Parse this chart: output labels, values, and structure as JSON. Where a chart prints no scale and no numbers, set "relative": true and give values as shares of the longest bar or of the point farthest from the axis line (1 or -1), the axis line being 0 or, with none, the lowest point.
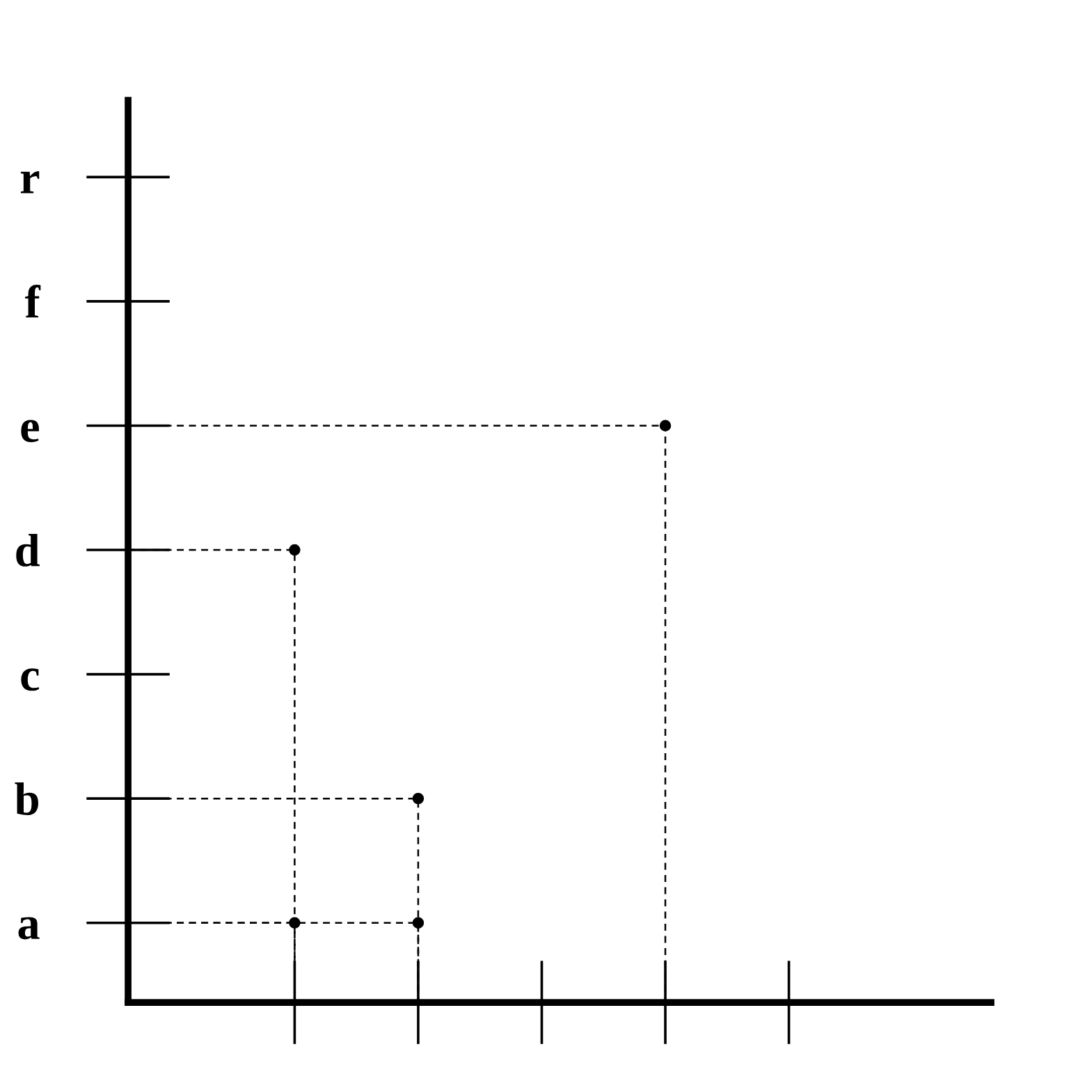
{
  "chart_data": {
    "type": "scatter",
    "orientation": "horizontal",
    "relative": true,
    "categories": [
      "r",
      "f",
      "e",
      "d",
      "c",
      "b",
      "a"
    ],
    "series": [
      {
        "color": "#000000",
        "values": [
          null,
          null,
          1.0,
          0.31,
          null,
          0.54,
          0.31
        ]
      },
      {
        "color": "#000000",
        "values": [
          null,
          null,
          null,
          null,
          null,
          null,
          0.54
        ]
      }
    ],
    "marker": "circle",
    "line_style": "dashed",
    "grid": false
  }
}
